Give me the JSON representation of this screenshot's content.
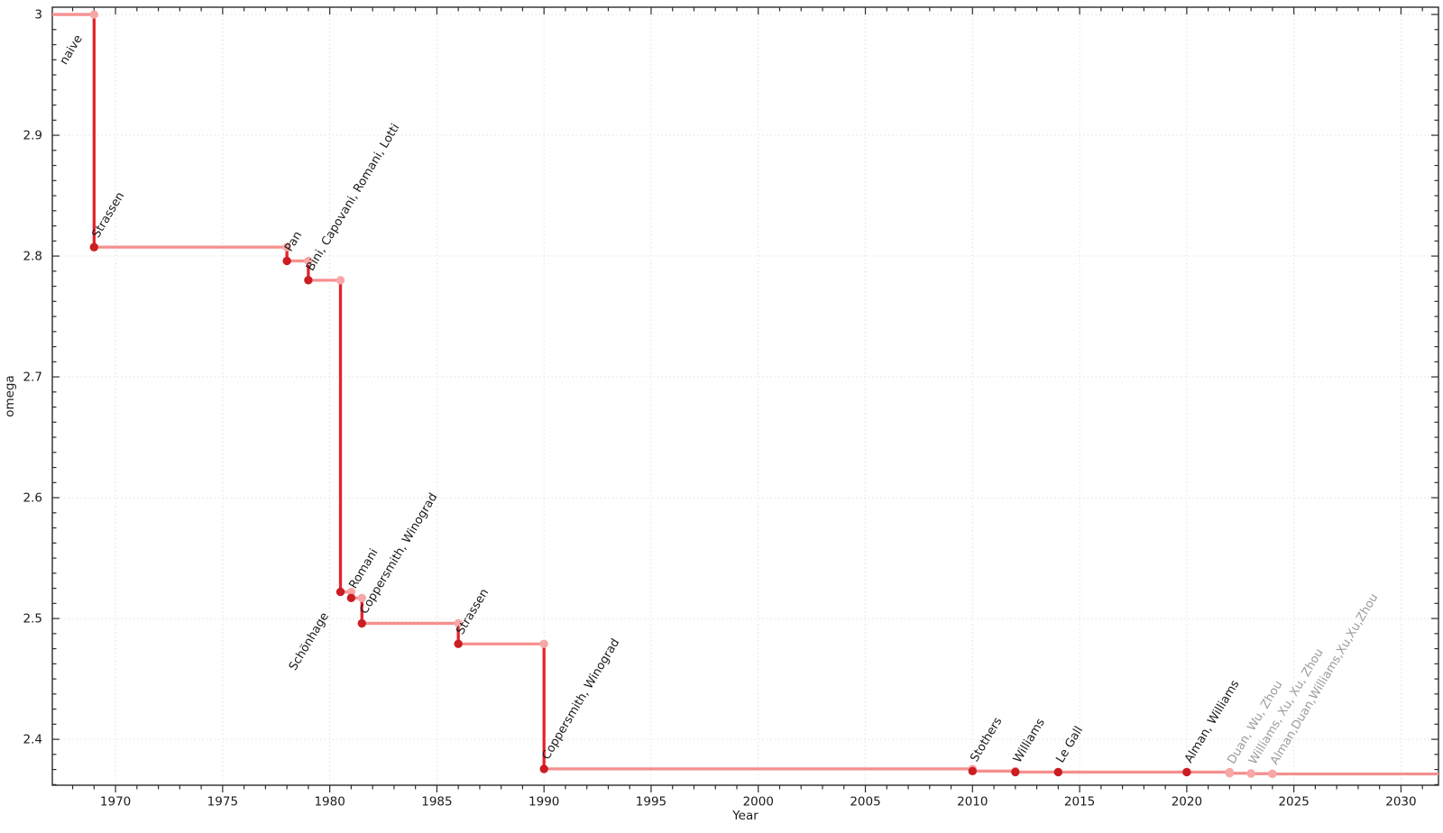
{
  "chart_data": {
    "type": "line",
    "subtype": "step-post",
    "title": "",
    "xlabel": "Year",
    "ylabel": "omega",
    "xlim": [
      1967.05,
      2031.75
    ],
    "ylim": [
      2.362,
      3.006
    ],
    "x_major_ticks": [
      1970,
      1975,
      1980,
      1985,
      1990,
      1995,
      2000,
      2005,
      2010,
      2015,
      2020,
      2025,
      2030
    ],
    "x_minor_step": 1,
    "y_major_ticks": [
      {
        "label": "3",
        "value": 3.0
      },
      {
        "label": "2.9",
        "value": 2.9
      },
      {
        "label": "2.8",
        "value": 2.8
      },
      {
        "label": "2.7",
        "value": 2.7
      },
      {
        "label": "2.6",
        "value": 2.6
      },
      {
        "label": "2.5",
        "value": 2.5
      },
      {
        "label": "2.4",
        "value": 2.4
      }
    ],
    "y_minor_step": 0.0125,
    "grid": {
      "show": true,
      "which": "major",
      "style": "dotted"
    },
    "legend": {
      "show": false
    },
    "initial": {
      "label": "naive",
      "omega": 3.0,
      "until_year": 1969,
      "label_placement": "below-step-corner"
    },
    "points": [
      {
        "label": "Strassen",
        "year": 1969,
        "omega": 2.8074,
        "confirmed": true,
        "label_side": "above"
      },
      {
        "label": "Pan",
        "year": 1978,
        "omega": 2.796,
        "confirmed": true,
        "label_side": "above"
      },
      {
        "label": "Bini, Capovani, Romani, Lotti",
        "year": 1979,
        "omega": 2.78,
        "confirmed": true,
        "label_side": "above"
      },
      {
        "label": "Schönhage",
        "year": 1980.5,
        "omega": 2.522,
        "confirmed": true,
        "label_side": "below"
      },
      {
        "label": "Romani",
        "year": 1981,
        "omega": 2.517,
        "confirmed": true,
        "label_side": "above"
      },
      {
        "label": "Coppersmith, Winograd",
        "year": 1981.5,
        "omega": 2.496,
        "confirmed": true,
        "label_side": "above"
      },
      {
        "label": "Strassen",
        "year": 1986,
        "omega": 2.479,
        "confirmed": true,
        "label_side": "above"
      },
      {
        "label": "Coppersmith, Winograd",
        "year": 1990,
        "omega": 2.3755,
        "confirmed": true,
        "label_side": "above"
      },
      {
        "label": "Stothers",
        "year": 2010,
        "omega": 2.3737,
        "confirmed": true,
        "label_side": "above"
      },
      {
        "label": "Williams",
        "year": 2012,
        "omega": 2.3729,
        "confirmed": true,
        "label_side": "above"
      },
      {
        "label": "Le Gall",
        "year": 2014,
        "omega": 2.3728639,
        "confirmed": true,
        "label_side": "above"
      },
      {
        "label": "Alman, Williams",
        "year": 2020,
        "omega": 2.3728596,
        "confirmed": true,
        "label_side": "above"
      },
      {
        "label": "Duan, Wu, Zhou",
        "year": 2022,
        "omega": 2.371866,
        "confirmed": false,
        "label_side": "above"
      },
      {
        "label": "Williams, Xu, Xu, Zhou",
        "year": 2023,
        "omega": 2.371552,
        "confirmed": false,
        "label_side": "above"
      },
      {
        "label": "Alman,Duan,Williams,Xu,Xu,Zhou",
        "year": 2024,
        "omega": 2.371339,
        "confirmed": false,
        "label_side": "above"
      }
    ],
    "style": {
      "background": "#ffffff",
      "step_line_color": "#f58f8f",
      "drop_line_color": "#e3242b",
      "marker_color": "#cb1d22",
      "corner_marker_color": "#f8a7a7",
      "label_color": "#1a1a1a",
      "unconfirmed_label_color": "#9b9b9b",
      "grid_color": "#e1e1e1",
      "axis_color": "#2b2b2b",
      "tick_label_color": "#1c1c1c"
    }
  }
}
